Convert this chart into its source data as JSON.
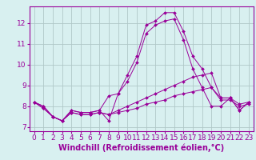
{
  "hours": [
    0,
    1,
    2,
    3,
    4,
    5,
    6,
    7,
    8,
    9,
    10,
    11,
    12,
    13,
    14,
    15,
    16,
    17,
    18,
    19,
    20,
    21,
    22,
    23
  ],
  "line1": [
    8.2,
    8.0,
    7.5,
    7.3,
    7.8,
    7.7,
    7.7,
    7.8,
    8.5,
    8.6,
    9.5,
    10.4,
    11.9,
    12.1,
    12.5,
    12.5,
    11.6,
    10.4,
    9.8,
    8.9,
    8.4,
    8.4,
    7.8,
    8.2
  ],
  "line2": [
    8.2,
    8.0,
    7.5,
    7.3,
    7.8,
    7.7,
    7.7,
    7.8,
    7.3,
    8.6,
    9.2,
    10.1,
    11.5,
    11.9,
    12.1,
    12.2,
    11.2,
    9.8,
    8.9,
    8.0,
    8.0,
    8.4,
    7.8,
    8.2
  ],
  "line3": [
    8.2,
    7.9,
    7.5,
    7.3,
    7.7,
    7.6,
    7.6,
    7.7,
    7.6,
    7.8,
    8.0,
    8.2,
    8.4,
    8.6,
    8.8,
    9.0,
    9.2,
    9.4,
    9.5,
    9.6,
    8.4,
    8.4,
    8.1,
    8.2
  ],
  "line4": [
    8.2,
    7.9,
    7.5,
    7.3,
    7.7,
    7.6,
    7.6,
    7.7,
    7.6,
    7.7,
    7.8,
    7.9,
    8.1,
    8.2,
    8.3,
    8.5,
    8.6,
    8.7,
    8.8,
    8.9,
    8.3,
    8.3,
    8.0,
    8.1
  ],
  "line_color": "#990099",
  "bg_color": "#d8f0f0",
  "grid_color": "#b0c8c8",
  "xlabel": "Windchill (Refroidissement éolien,°C)",
  "xlim": [
    -0.5,
    23.5
  ],
  "ylim": [
    6.8,
    12.8
  ],
  "yticks": [
    7,
    8,
    9,
    10,
    11,
    12
  ],
  "xticks": [
    0,
    1,
    2,
    3,
    4,
    5,
    6,
    7,
    8,
    9,
    10,
    11,
    12,
    13,
    14,
    15,
    16,
    17,
    18,
    19,
    20,
    21,
    22,
    23
  ],
  "marker": "D",
  "markersize": 2,
  "linewidth": 0.7,
  "tick_fontsize": 6.5,
  "xlabel_fontsize": 7
}
